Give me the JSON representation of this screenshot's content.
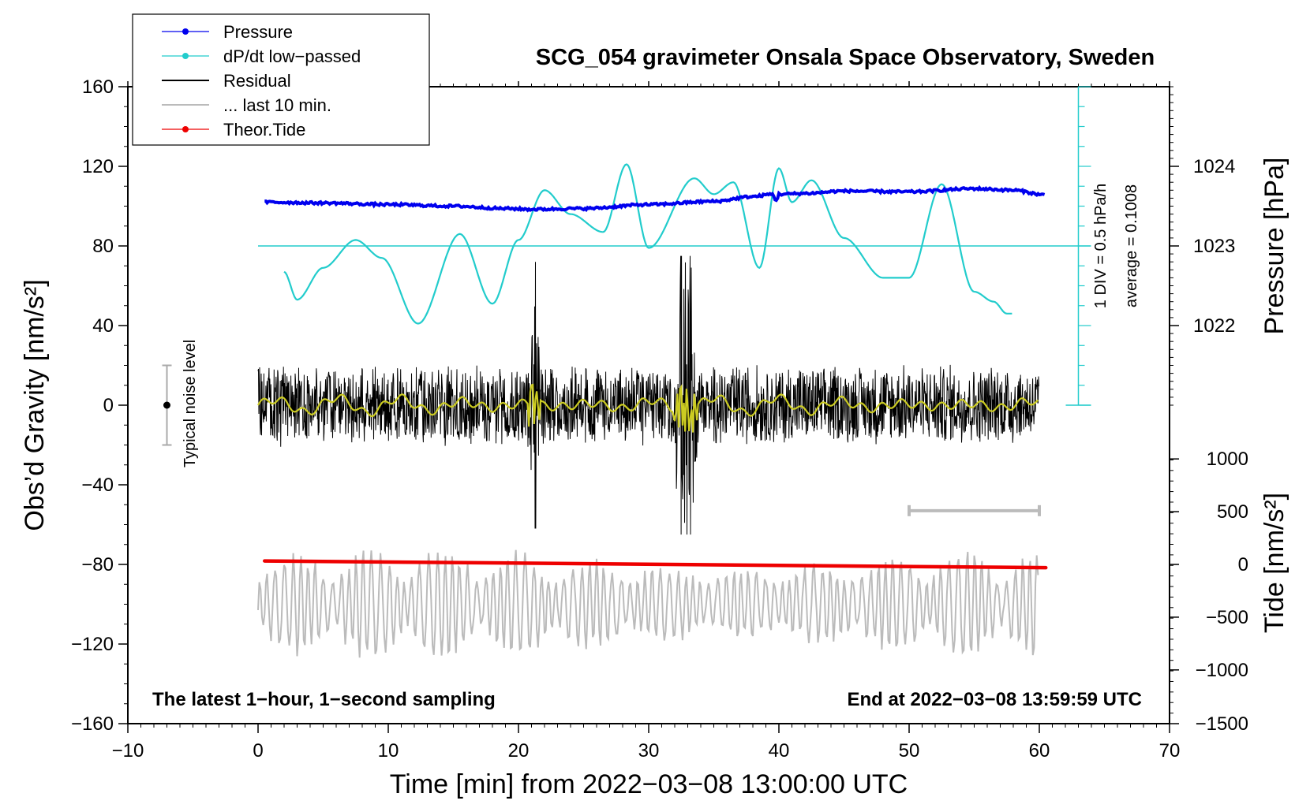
{
  "title": "SCG_054 gravimeter Onsala Space Observatory, Sweden",
  "xlabel": "Time [min] from 2022−03−08 13:00:00 UTC",
  "ylabel_left": "Obs’d Gravity [nm/s²]",
  "ylabel_right_top": "Pressure [hPa]",
  "ylabel_right_bottom": "Tide [nm/s²]",
  "note_left": "The latest 1−hour, 1−second sampling",
  "note_right": "End at 2022−03−08 13:59:59 UTC",
  "noise_label": "Typical noise level",
  "ddt_scale_label": "1 DIV = 0.5 hPa/h",
  "ddt_average_label": "average = 0.1008",
  "legend": [
    {
      "label": "Pressure",
      "color": "#0000ee",
      "style": "line-dot"
    },
    {
      "label": "dP/dt low−passed",
      "color": "#22cccc",
      "style": "line-dot"
    },
    {
      "label": "Residual",
      "color": "#000000",
      "style": "line"
    },
    {
      "label": "... last 10 min.",
      "color": "#bbbbbb",
      "style": "line"
    },
    {
      "label": "Theor.Tide",
      "color": "#ee0000",
      "style": "line-dot"
    }
  ],
  "colors": {
    "pressure": "#0000ee",
    "dpdt": "#22cccc",
    "residual": "#000000",
    "residual_smooth": "#cccc22",
    "last10": "#bbbbbb",
    "tide": "#ee0000",
    "noise_bar": "#aaaaaa"
  },
  "chart_data": {
    "type": "line",
    "title": "SCG_054 gravimeter Onsala Space Observatory, Sweden",
    "x_axis": {
      "label": "Time [min] from 2022−03−08 13:00:00 UTC",
      "range": [
        -10,
        70
      ],
      "ticks": [
        -10,
        0,
        10,
        20,
        30,
        40,
        50,
        60,
        70
      ],
      "tick_labels": [
        "−10",
        "0",
        "10",
        "20",
        "30",
        "40",
        "50",
        "60",
        "70"
      ]
    },
    "y_left": {
      "label": "Obs’d Gravity [nm/s²]",
      "range": [
        -160,
        160
      ],
      "ticks": [
        -160,
        -120,
        -80,
        -40,
        0,
        40,
        80,
        120,
        160
      ],
      "tick_labels": [
        "−160",
        "−120",
        "−80",
        "−40",
        "0",
        "40",
        "80",
        "120",
        "160"
      ]
    },
    "y_right_pressure": {
      "label": "Pressure [hPa]",
      "ticks": [
        1022,
        1023,
        1024
      ],
      "tick_labels": [
        "1022",
        "1023",
        "1024"
      ],
      "tick_gravity_positions": [
        40,
        80,
        120
      ]
    },
    "y_right_tide": {
      "label": "Tide [nm/s²]",
      "ticks": [
        1000,
        500,
        0,
        -500,
        -1000,
        -1500
      ],
      "tick_labels": [
        "1000",
        "500",
        "0",
        "−500",
        "−1000",
        "−1500"
      ],
      "tick_gravity_positions": [
        -27,
        -53.5,
        -80,
        -106.5,
        -133,
        -160
      ]
    },
    "dpdt_scale": {
      "description": "1 DIV = 0.5 hPa/h",
      "average": 0.1008,
      "axis_time": 63,
      "range_gravity": [
        0,
        160
      ],
      "zero_gravity": 80,
      "minor_step_gravity": 10,
      "major_step_gravity": 40
    },
    "noise_level": {
      "time": -7,
      "center": 0,
      "half_range": 20
    },
    "last_10_min_bar": {
      "start": 50,
      "end": 60,
      "gravity": -53
    },
    "series": [
      {
        "name": "Pressure",
        "unit": "hPa",
        "x": [
          0.5,
          5,
          10,
          15,
          19,
          21,
          25,
          30,
          35,
          38,
          39.5,
          39.8,
          40,
          42,
          45,
          50,
          55,
          58,
          60.5
        ],
        "values": [
          1023.55,
          1023.54,
          1023.52,
          1023.5,
          1023.47,
          1023.46,
          1023.47,
          1023.52,
          1023.56,
          1023.62,
          1023.65,
          1023.57,
          1023.65,
          1023.66,
          1023.69,
          1023.68,
          1023.72,
          1023.7,
          1023.64
        ]
      },
      {
        "name": "dP/dt low−passed",
        "unit": "gravity-equivalent",
        "x": [
          2,
          3,
          5,
          7.5,
          9.5,
          12.3,
          15.5,
          18,
          20,
          22,
          24,
          26.5,
          28.3,
          30,
          33.5,
          35,
          36.5,
          38.5,
          40,
          41,
          42.5,
          45,
          48,
          50,
          52.5,
          55,
          56.5,
          57.5,
          58
        ],
        "values": [
          67,
          53,
          69,
          83,
          74,
          41,
          86,
          51,
          83,
          108,
          96,
          87,
          121,
          79,
          114,
          106,
          112,
          69,
          119,
          102,
          113,
          84,
          64,
          64,
          111,
          57,
          52,
          46,
          46
        ]
      },
      {
        "name": "Residual",
        "x_range": [
          0,
          60
        ],
        "envelope": {
          "typical": [
            -22,
            22
          ],
          "spikes": [
            {
              "x": 21.3,
              "max": 72,
              "min": -62
            },
            {
              "x": 32.5,
              "max": 66,
              "min": -62
            },
            {
              "x": 33.2,
              "max": 55,
              "min": -50
            }
          ]
        }
      },
      {
        "name": "Residual (smoothed)",
        "x_range": [
          0,
          60
        ],
        "amplitude": 4
      },
      {
        "name": "... last 10 min.",
        "x_range": [
          0,
          60
        ],
        "offset": -100,
        "envelope": [
          -130,
          -67
        ]
      },
      {
        "name": "Theor.Tide",
        "unit": "nm/s²",
        "x": [
          0.5,
          60.5
        ],
        "values": [
          33,
          -31
        ]
      }
    ]
  }
}
